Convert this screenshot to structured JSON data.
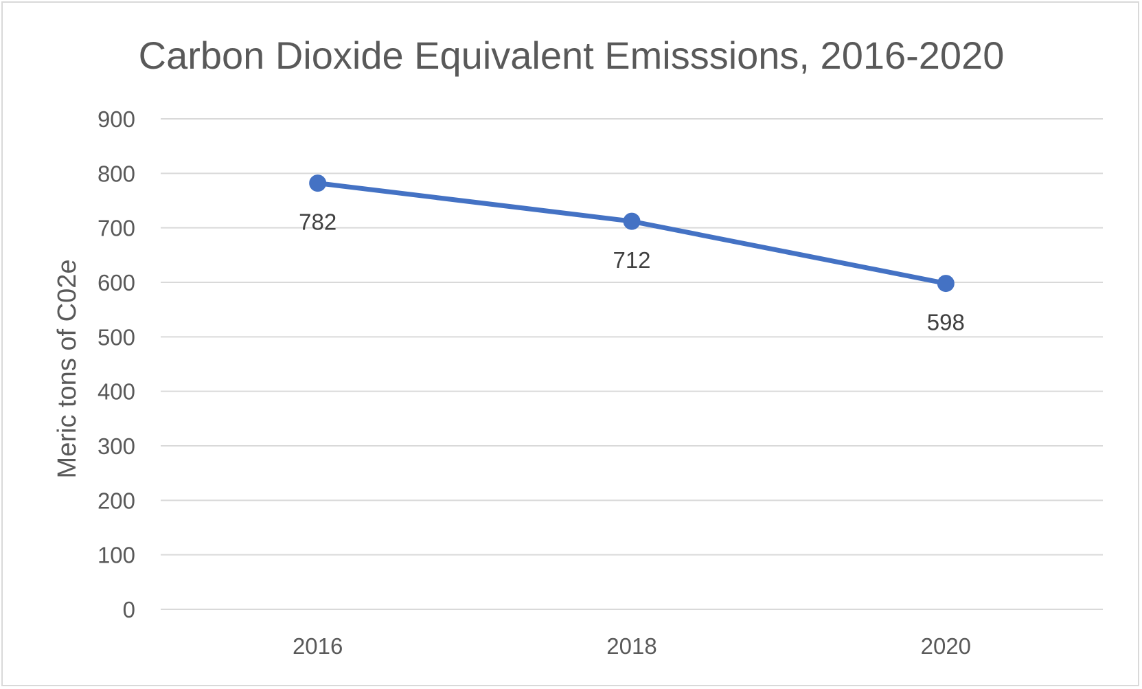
{
  "chart_data": {
    "type": "line",
    "title": "Carbon Dioxide Equivalent Emisssions, 2016-2020",
    "xlabel": "",
    "ylabel": "Meric tons of C02e",
    "categories": [
      "2016",
      "2018",
      "2020"
    ],
    "series": [
      {
        "values": [
          782,
          712,
          598
        ],
        "color": "#4472c4",
        "marker": "circle",
        "data_labels": [
          "782",
          "712",
          "598"
        ]
      }
    ],
    "ylim": [
      0,
      900
    ],
    "yticks": [
      0,
      100,
      200,
      300,
      400,
      500,
      600,
      700,
      800,
      900
    ],
    "ytick_labels": [
      "0",
      "100",
      "200",
      "300",
      "400",
      "500",
      "600",
      "700",
      "800",
      "900"
    ],
    "grid": "horizontal",
    "legend": "none"
  }
}
